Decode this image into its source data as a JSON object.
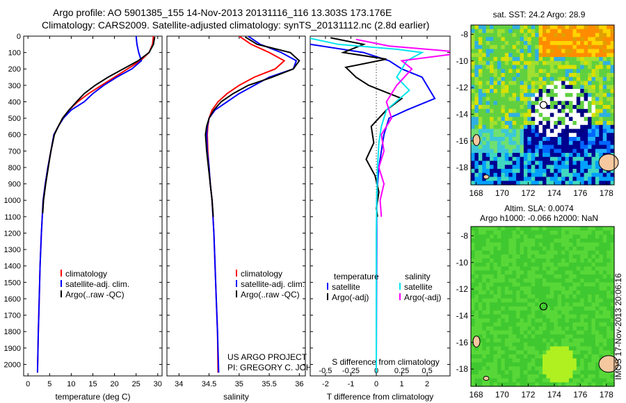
{
  "header": {
    "line1": "Argo profile: AO 5901385_155 14-Nov-2013 20131116_116 13.303S 173.176E",
    "line2": "Climatology: CARS2009. Satellite-adjusted climatology: synTS_20131112.nc (2.8d earlier)"
  },
  "colors": {
    "climatology": "#ff0000",
    "satellite": "#0000ff",
    "argo": "#000000",
    "satellite_salinity": "#00e5ee",
    "argo_salinity_adj": "#ff00ff"
  },
  "chart_data": [
    {
      "type": "line",
      "panel": "temperature",
      "xlabel": "temperature (deg C)",
      "ylabel": "",
      "xlim": [
        -1,
        31
      ],
      "ylim": [
        2070,
        0
      ],
      "xticks": [
        0,
        5,
        10,
        15,
        20,
        25,
        30
      ],
      "yticks": [
        0,
        100,
        200,
        300,
        400,
        500,
        600,
        700,
        800,
        900,
        1000,
        1100,
        1200,
        1300,
        1400,
        1500,
        1600,
        1700,
        1800,
        1900,
        2000
      ],
      "legend": [
        "climatology",
        "satellite-adj. clim.",
        "Argo(..raw -QC)"
      ],
      "legend_position": "bottom-center",
      "series": [
        {
          "name": "climatology",
          "color": "#ff0000",
          "x": [
            29.0,
            28.8,
            28.0,
            26.0,
            23.0,
            20.0,
            17.0,
            14.0,
            11.5,
            9.5,
            8.0,
            7.0,
            6.0,
            5.3,
            4.6,
            4.0,
            3.5,
            3.1,
            2.8,
            2.6,
            2.4,
            2.2
          ],
          "y": [
            0,
            50,
            100,
            150,
            200,
            250,
            300,
            350,
            400,
            450,
            500,
            550,
            600,
            700,
            800,
            900,
            1000,
            1200,
            1400,
            1600,
            1800,
            2050
          ]
        },
        {
          "name": "satellite-adj. clim.",
          "color": "#0000ff",
          "x": [
            25.0,
            25.2,
            25.6,
            26.2,
            24.0,
            20.5,
            17.5,
            15.0,
            13.0,
            10.0,
            8.2,
            7.0,
            6.0,
            5.3,
            4.6,
            4.0,
            3.5,
            3.1,
            2.8,
            2.6,
            2.4,
            2.2
          ],
          "y": [
            0,
            50,
            100,
            150,
            200,
            250,
            300,
            350,
            400,
            450,
            500,
            550,
            600,
            700,
            800,
            900,
            1000,
            1200,
            1400,
            1600,
            1800,
            2050
          ]
        },
        {
          "name": "Argo(..raw -QC)",
          "color": "#000000",
          "x": [
            29.3,
            29.0,
            28.0,
            25.5,
            22.0,
            18.5,
            15.5,
            13.0,
            11.2,
            9.5,
            8.0,
            7.0,
            6.1,
            5.3,
            4.7,
            4.1,
            3.6,
            3.4
          ],
          "y": [
            5,
            50,
            100,
            150,
            200,
            250,
            300,
            350,
            400,
            450,
            500,
            550,
            600,
            700,
            800,
            900,
            1000,
            1080
          ]
        }
      ]
    },
    {
      "type": "line",
      "panel": "salinity",
      "xlabel": "salinity",
      "ylabel": "",
      "xlim": [
        33.8,
        36.1
      ],
      "ylim": [
        2070,
        0
      ],
      "xticks": [
        34,
        34.5,
        35,
        35.5,
        36
      ],
      "legend": [
        "climatology",
        "satellite-adj. clim.",
        "Argo(..raw -QC)"
      ],
      "legend_position": "bottom-right",
      "series": [
        {
          "name": "climatology",
          "color": "#ff0000",
          "x": [
            35.0,
            35.2,
            35.5,
            35.75,
            35.6,
            35.25,
            35.0,
            34.8,
            34.65,
            34.55,
            34.5,
            34.48,
            34.47,
            34.48,
            34.5,
            34.52,
            34.55,
            34.58,
            34.6,
            34.62,
            34.64,
            34.65
          ],
          "y": [
            0,
            50,
            100,
            150,
            200,
            250,
            300,
            350,
            400,
            450,
            500,
            550,
            600,
            700,
            800,
            900,
            1000,
            1200,
            1400,
            1600,
            1800,
            2050
          ]
        },
        {
          "name": "satellite-adj. clim.",
          "color": "#0000ff",
          "x": [
            35.15,
            35.35,
            35.7,
            35.95,
            35.9,
            35.5,
            35.25,
            35.0,
            34.8,
            34.6,
            34.5,
            34.47,
            34.46,
            34.47,
            34.5,
            34.52,
            34.55,
            34.58,
            34.6,
            34.62,
            34.64,
            34.66
          ],
          "y": [
            0,
            50,
            100,
            150,
            200,
            250,
            300,
            350,
            400,
            450,
            500,
            550,
            600,
            700,
            800,
            900,
            1000,
            1200,
            1400,
            1600,
            1800,
            2050
          ]
        },
        {
          "name": "Argo(..raw -QC)",
          "color": "#000000",
          "x": [
            35.1,
            35.3,
            35.85,
            36.0,
            35.9,
            35.55,
            35.15,
            34.9,
            34.7,
            34.58,
            34.5,
            34.46,
            34.44,
            34.46,
            34.49,
            34.52,
            34.55,
            34.57
          ],
          "y": [
            5,
            50,
            100,
            150,
            200,
            250,
            300,
            350,
            400,
            450,
            500,
            550,
            600,
            700,
            800,
            900,
            1000,
            1100
          ]
        }
      ],
      "annotation": [
        "US ARGO PROJECT",
        "PI: GREGORY C. JOHNSON"
      ]
    },
    {
      "type": "line",
      "panel": "difference",
      "xlabel_top": "S difference from climatology",
      "xlabel": "T difference from climatology",
      "xlim": [
        -2.6,
        2.9
      ],
      "ylim": [
        2070,
        0
      ],
      "xticks": [
        -2,
        -1,
        0,
        1,
        2
      ],
      "xticks_s": [
        -0.5,
        -0.25,
        0,
        0.25,
        0.5
      ],
      "legend": {
        "left_header": "temperature",
        "right_header": "salinity",
        "left": [
          "satellite",
          "Argo(-adj)"
        ],
        "right": [
          "satellite",
          "Argo(-adj)"
        ]
      },
      "legend_position": "bottom",
      "series": [
        {
          "name": "temperature satellite",
          "color": "#0000ff",
          "x": [
            -3.9,
            -2.6,
            -0.5,
            0.5,
            1.0,
            1.8,
            2.3,
            1.2,
            0.5,
            0.4,
            0.3,
            0.2,
            0.1,
            0.05,
            0.02,
            0.0
          ],
          "y": [
            0,
            50,
            100,
            150,
            200,
            250,
            380,
            450,
            500,
            550,
            600,
            700,
            800,
            900,
            1000,
            2050
          ]
        },
        {
          "name": "temperature Argo(-adj)",
          "color": "#000000",
          "x": [
            -1.8,
            -0.5,
            -1.3,
            0.4,
            -1.2,
            -0.8,
            -0.3,
            1.0,
            0.4,
            -0.2,
            -0.1,
            -0.4,
            -0.05,
            0.1,
            0.0,
            0.05
          ],
          "y": [
            10,
            50,
            100,
            140,
            190,
            250,
            300,
            380,
            450,
            550,
            650,
            750,
            850,
            950,
            1050,
            1100
          ]
        },
        {
          "name": "salinity satellite",
          "color": "#00e5ee",
          "x": [
            -3.0,
            -1.5,
            0.8,
            1.8,
            1.2,
            0.8,
            1.3,
            0.4,
            0.2,
            0.1,
            0.05,
            0.02,
            0.0,
            0.0
          ],
          "y": [
            0,
            50,
            80,
            100,
            150,
            250,
            330,
            450,
            550,
            650,
            800,
            1000,
            1200,
            2050
          ]
        },
        {
          "name": "salinity Argo(-adj)",
          "color": "#ff00ff",
          "x": [
            -0.8,
            0.5,
            3.5,
            1.0,
            1.4,
            0.8,
            0.4,
            0.6,
            0.2,
            0.3,
            0.1,
            0.3,
            0.15,
            0.2
          ],
          "y": [
            20,
            60,
            100,
            150,
            200,
            300,
            400,
            500,
            600,
            700,
            800,
            900,
            1000,
            1100
          ]
        }
      ]
    },
    {
      "type": "heatmap",
      "panel": "sst-map",
      "title": "sat. SST: 24.2  Argo: 28.9",
      "xticks": [
        168,
        170,
        172,
        174,
        176,
        178
      ],
      "yticks": [
        -8,
        -10,
        -12,
        -14,
        -16,
        -18
      ],
      "xlim": [
        167.6,
        178.6
      ],
      "ylim": [
        -19.3,
        -7.3
      ],
      "argo_position": [
        173.176,
        -13.303
      ]
    },
    {
      "type": "heatmap",
      "panel": "sla-map",
      "title_line1": "Altim. SLA: 0.0074",
      "title_line2": "Argo h1000: -0.066 h2000: NaN",
      "xticks": [
        168,
        170,
        172,
        174,
        176,
        178
      ],
      "yticks": [
        -8,
        -10,
        -12,
        -14,
        -16,
        -18
      ],
      "xlim": [
        167.6,
        178.6
      ],
      "ylim": [
        -19.3,
        -7.3
      ],
      "argo_position": [
        173.176,
        -13.303
      ]
    }
  ],
  "footer": {
    "stamp": "IMOS 17-Nov-2013 20:06:16"
  }
}
